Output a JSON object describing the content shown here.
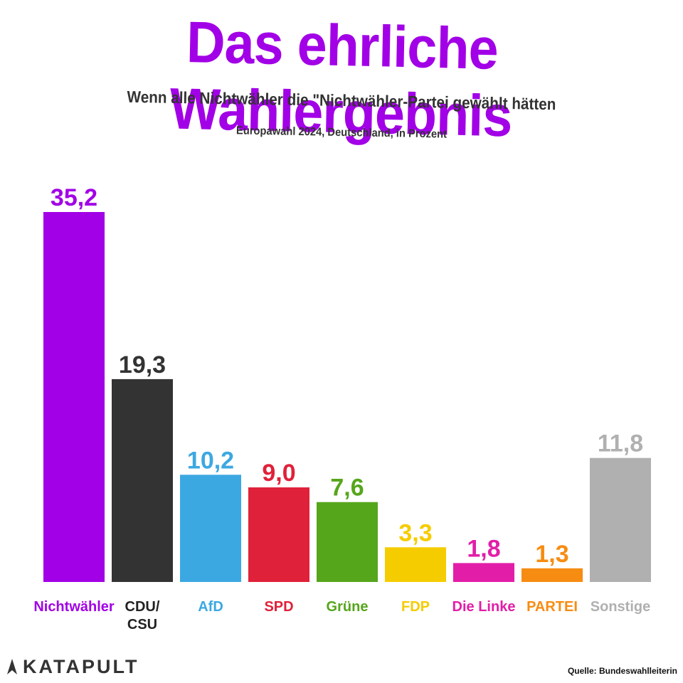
{
  "header": {
    "title": "Das ehrliche Wahlergebnis",
    "subtitle": "Wenn alle Nichtwähler die \"Nichtwähler-Partei gewählt hätten",
    "caption": "Europawahl 2024, Deutschland, in Prozent"
  },
  "chart_data": {
    "type": "bar",
    "categories": [
      [
        "Nichtwähler"
      ],
      [
        "CDU/",
        "CSU"
      ],
      [
        "AfD"
      ],
      [
        "SPD"
      ],
      [
        "Grüne"
      ],
      [
        "FDP"
      ],
      [
        "Die Linke"
      ],
      [
        "PARTEI"
      ],
      [
        "Sonstige"
      ]
    ],
    "values": [
      35.2,
      19.3,
      10.2,
      9.0,
      7.6,
      3.3,
      1.8,
      1.3,
      11.8
    ],
    "value_labels": [
      "35,2",
      "19,3",
      "10,2",
      "9,0",
      "7,6",
      "3,3",
      "1,8",
      "1,3",
      "11,8"
    ],
    "colors": [
      "#a200e6",
      "#333333",
      "#3ca8e2",
      "#e0213a",
      "#56a61c",
      "#f5cc00",
      "#e21ea8",
      "#f78c12",
      "#b0b0b0"
    ],
    "label_colors": [
      "#a200e6",
      "#222222",
      "#3ca8e2",
      "#e0213a",
      "#56a61c",
      "#f5cc00",
      "#e21ea8",
      "#f78c12",
      "#b0b0b0"
    ],
    "ylim": [
      0,
      35.2
    ],
    "grid": false,
    "legend": "none"
  },
  "footer": {
    "logo": "KATAPULT",
    "logo_icon": "katapult-logo-icon",
    "source": "Quelle: Bundeswahlleiterin"
  }
}
